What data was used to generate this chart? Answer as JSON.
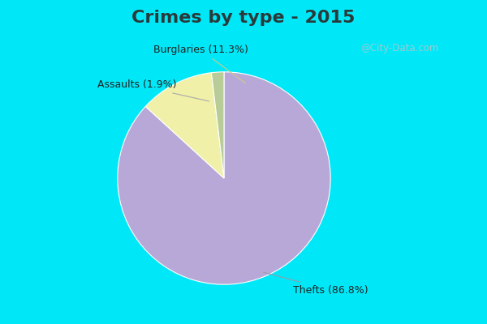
{
  "title": "Crimes by type - 2015",
  "slices": [
    {
      "label": "Thefts",
      "pct": 86.8,
      "color": "#b8a8d8"
    },
    {
      "label": "Burglaries",
      "pct": 11.3,
      "color": "#f0f0a8"
    },
    {
      "label": "Assaults",
      "pct": 1.9,
      "color": "#b8cc98"
    }
  ],
  "bg_cyan": "#00e8f8",
  "bg_green": "#d0eedd",
  "title_color": "#2a3a3a",
  "title_fontsize": 16,
  "label_fontsize": 9,
  "watermark": "@City-Data.com",
  "watermark_color": "#a8c8cc",
  "startangle": 90
}
